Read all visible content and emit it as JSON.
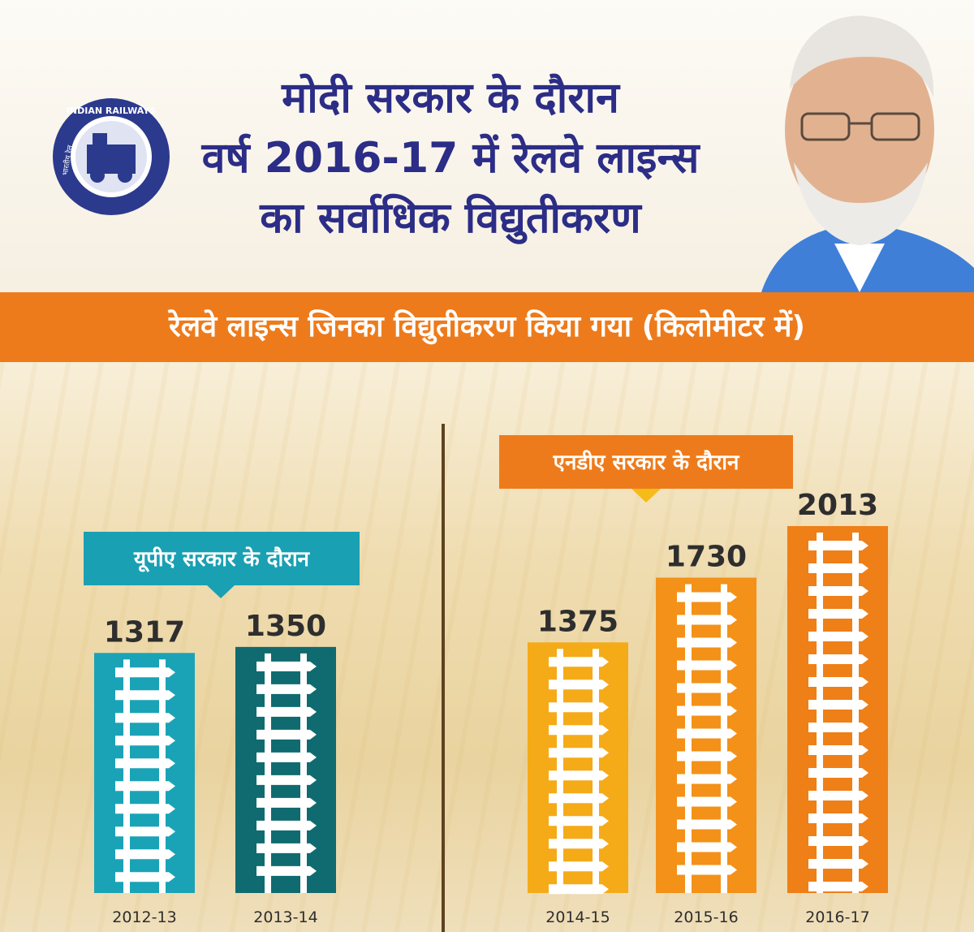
{
  "header": {
    "title_lines": [
      "मोदी सरकार के दौरान",
      "वर्ष 2016-17 में रेलवे लाइन्स",
      "का सर्वाधिक विद्युतीकरण"
    ],
    "logo": {
      "icon": "indian-railways-logo-icon",
      "text": "INDIAN RAILWAYS",
      "text_hi": "भारतीय रेल"
    }
  },
  "banner": {
    "text": "रेलवे लाइन्स जिनका विद्युतीकरण किया गया (किलोमीटर में)"
  },
  "groups": {
    "upa": {
      "label": "यूपीए सरकार के दौरान",
      "color": "#1aa0b3"
    },
    "nda": {
      "label": "एनडीए सरकार के दौरान",
      "color": "#ee7b1b"
    }
  },
  "chart_data": {
    "type": "bar",
    "title": "रेलवे लाइन्स जिनका विद्युतीकरण किया गया (किलोमीटर में)",
    "categories": [
      "2012-13",
      "2013-14",
      "2014-15",
      "2015-16",
      "2016-17"
    ],
    "values": [
      1317,
      1350,
      1375,
      1730,
      2013
    ],
    "groups": [
      "upa",
      "upa",
      "nda",
      "nda",
      "nda"
    ],
    "colors": [
      "#1aa3b6",
      "#0f6b70",
      "#f5aa18",
      "#f39118",
      "#ef7f17"
    ],
    "ylim": [
      0,
      2100
    ],
    "grid": false
  }
}
